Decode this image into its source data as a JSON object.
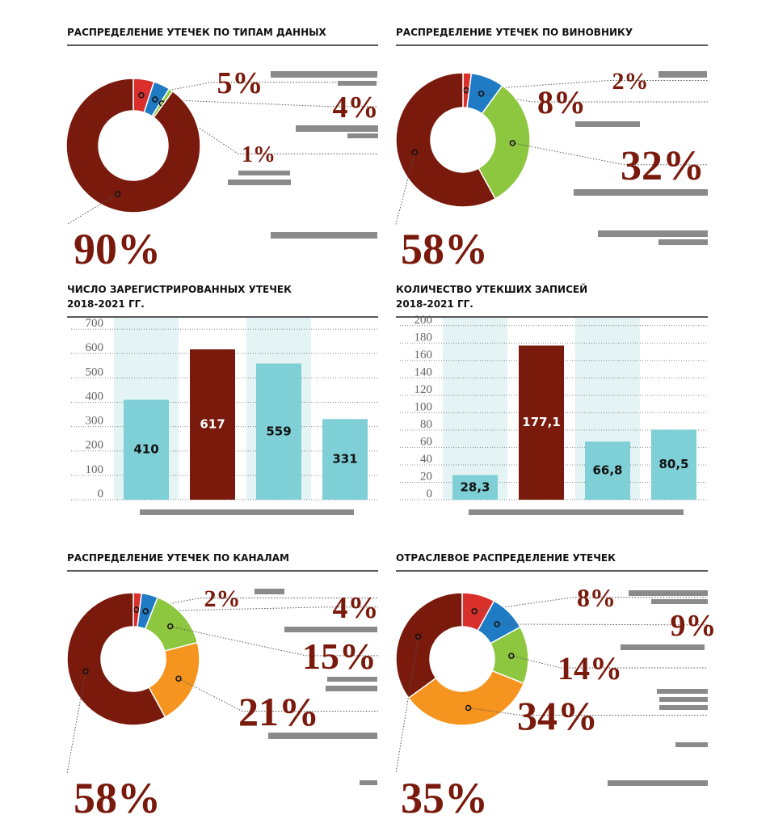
{
  "chart_data": [
    {
      "type": "donut",
      "title": "РАСПРЕДЕЛЕНИЕ УТЕЧЕК ПО ТИПАМ ДАННЫХ",
      "values": [
        5,
        4,
        1,
        90
      ],
      "value_labels": [
        "5%",
        "4%",
        "1%",
        "90%"
      ],
      "colors": [
        "#d9302c",
        "#1f7bc4",
        "#8dc63f",
        "#7a1a0c"
      ]
    },
    {
      "type": "donut",
      "title": "РАСПРЕДЕЛЕНИЕ УТЕЧЕК ПО ВИНОВНИКУ",
      "values": [
        2,
        8,
        32,
        58
      ],
      "value_labels": [
        "2%",
        "8%",
        "32%",
        "58%"
      ],
      "colors": [
        "#d9302c",
        "#1f7bc4",
        "#8dc63f",
        "#7a1a0c"
      ]
    },
    {
      "type": "bar",
      "title": [
        "ЧИСЛО ЗАРЕГИСТРИРОВАННЫХ УТЕЧЕК",
        "2018-2021 ГГ."
      ],
      "categories": [
        null,
        null,
        null,
        null
      ],
      "values": [
        410,
        617,
        559,
        331
      ],
      "colors": [
        "#7ecfd6",
        "#7a1a0c",
        "#7ecfd6",
        "#7ecfd6"
      ],
      "ylim": [
        0,
        750
      ],
      "yticks": [
        0,
        100,
        200,
        300,
        400,
        500,
        600,
        700
      ],
      "grid": true
    },
    {
      "type": "bar",
      "title": [
        "КОЛИЧЕСТВО УТЕКШИХ ЗАПИСЕЙ",
        "2018-2021 ГГ."
      ],
      "categories": [
        null,
        null,
        null,
        null
      ],
      "values": [
        28.3,
        177.1,
        66.8,
        80.5
      ],
      "value_labels": [
        "28,3",
        "177,1",
        "66,8",
        "80,5"
      ],
      "colors": [
        "#7ecfd6",
        "#7a1a0c",
        "#7ecfd6",
        "#7ecfd6"
      ],
      "ylim": [
        0,
        210
      ],
      "yticks": [
        0,
        20,
        40,
        60,
        80,
        100,
        120,
        140,
        160,
        180,
        200
      ],
      "grid": true
    },
    {
      "type": "donut",
      "title": "РАСПРЕДЕЛЕНИЕ УТЕЧЕК ПО КАНАЛАМ",
      "values": [
        2,
        4,
        15,
        21,
        58
      ],
      "value_labels": [
        "2%",
        "4%",
        "15%",
        "21%",
        "58%"
      ],
      "colors": [
        "#d9302c",
        "#1f7bc4",
        "#8dc63f",
        "#f5951f",
        "#7a1a0c"
      ]
    },
    {
      "type": "donut",
      "title": "ОТРАСЛЕВОЕ РАСПРЕДЕЛЕНИЕ УТЕЧЕК",
      "values": [
        8,
        9,
        14,
        34,
        35
      ],
      "value_labels": [
        "8%",
        "9%",
        "14%",
        "34%",
        "35%"
      ],
      "colors": [
        "#d9302c",
        "#1f7bc4",
        "#8dc63f",
        "#f5951f",
        "#7a1a0c"
      ]
    }
  ]
}
